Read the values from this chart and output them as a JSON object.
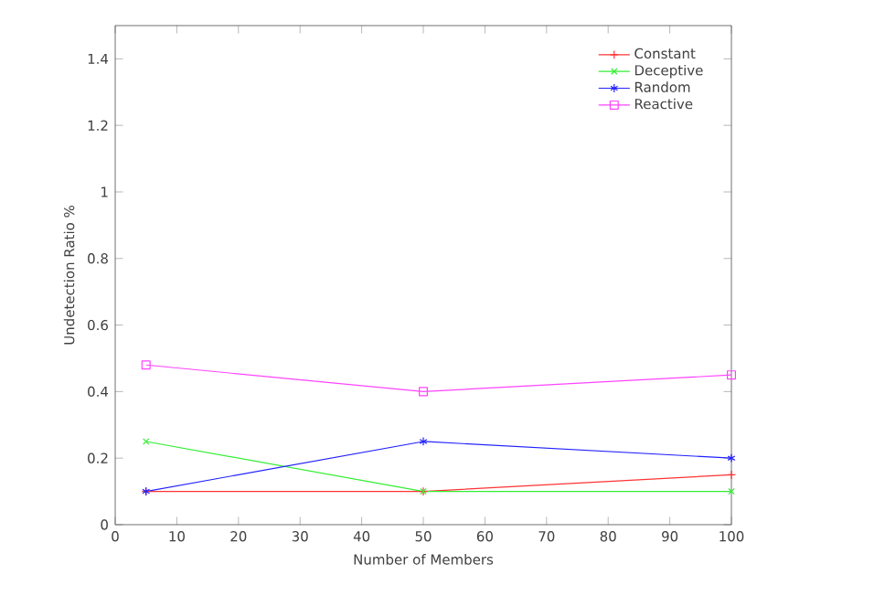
{
  "chart_data": {
    "type": "line",
    "xlabel": "Number of Members",
    "ylabel": "Undetection Ratio %",
    "x": [
      5,
      50,
      100
    ],
    "series": [
      {
        "name": "Constant",
        "color": "#ff3333",
        "marker": "cross",
        "values": [
          0.1,
          0.1,
          0.15
        ]
      },
      {
        "name": "Deceptive",
        "color": "#33ee33",
        "marker": "cross",
        "values": [
          0.25,
          0.1,
          0.1
        ]
      },
      {
        "name": "Random",
        "color": "#2222ff",
        "marker": "cross",
        "values": [
          0.1,
          0.25,
          0.2
        ]
      },
      {
        "name": "Reactive",
        "color": "#ff44ff",
        "marker": "square",
        "values": [
          0.48,
          0.4,
          0.45
        ]
      }
    ],
    "xlim": [
      0,
      100
    ],
    "xticks": [
      0,
      10,
      20,
      30,
      40,
      50,
      60,
      70,
      80,
      90,
      100
    ],
    "ylim": [
      0,
      1.5
    ],
    "yticks": [
      0,
      0.2,
      0.4,
      0.6,
      0.8,
      1,
      1.2,
      1.4
    ],
    "grid": false,
    "legend": "top right",
    "line_style": "solid"
  }
}
